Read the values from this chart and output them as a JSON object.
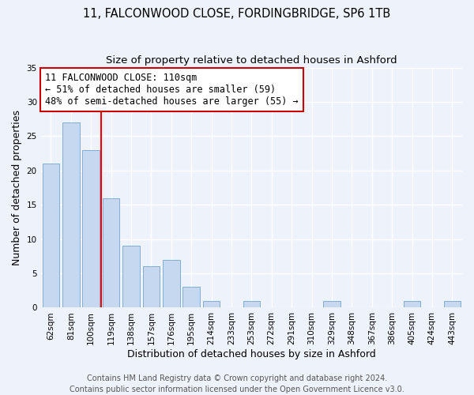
{
  "title1": "11, FALCONWOOD CLOSE, FORDINGBRIDGE, SP6 1TB",
  "title2": "Size of property relative to detached houses in Ashford",
  "xlabel": "Distribution of detached houses by size in Ashford",
  "ylabel": "Number of detached properties",
  "categories": [
    "62sqm",
    "81sqm",
    "100sqm",
    "119sqm",
    "138sqm",
    "157sqm",
    "176sqm",
    "195sqm",
    "214sqm",
    "233sqm",
    "253sqm",
    "272sqm",
    "291sqm",
    "310sqm",
    "329sqm",
    "348sqm",
    "367sqm",
    "386sqm",
    "405sqm",
    "424sqm",
    "443sqm"
  ],
  "values": [
    21,
    27,
    23,
    16,
    9,
    6,
    7,
    3,
    1,
    0,
    1,
    0,
    0,
    0,
    1,
    0,
    0,
    0,
    1,
    0,
    1
  ],
  "bar_color": "#c5d8f0",
  "bar_edge_color": "#7fafd4",
  "red_line_x": 2.5,
  "annotation_line1": "11 FALCONWOOD CLOSE: 110sqm",
  "annotation_line2": "← 51% of detached houses are smaller (59)",
  "annotation_line3": "48% of semi-detached houses are larger (55) →",
  "annotation_box_color": "#ffffff",
  "annotation_box_edge_color": "#cc0000",
  "footer1": "Contains HM Land Registry data © Crown copyright and database right 2024.",
  "footer2": "Contains public sector information licensed under the Open Government Licence v3.0.",
  "ylim": [
    0,
    35
  ],
  "yticks": [
    0,
    5,
    10,
    15,
    20,
    25,
    30,
    35
  ],
  "background_color": "#eef2fa",
  "grid_color": "#ffffff",
  "title_fontsize": 10.5,
  "subtitle_fontsize": 9.5,
  "axis_label_fontsize": 9,
  "tick_fontsize": 7.5,
  "footer_fontsize": 7,
  "annotation_fontsize": 8.5
}
